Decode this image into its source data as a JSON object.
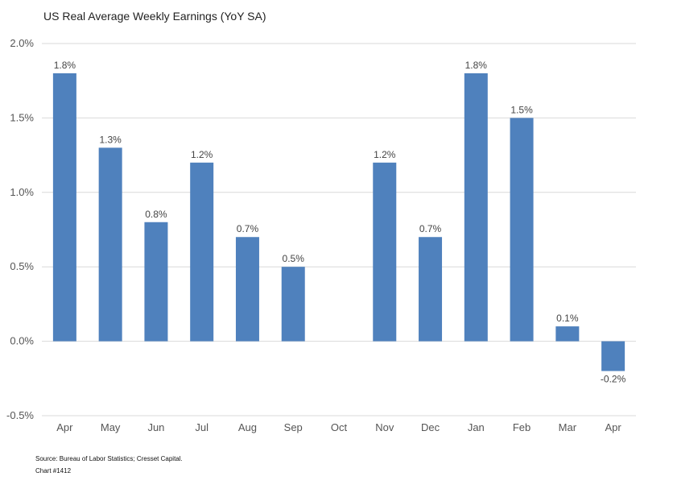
{
  "chart_data": {
    "type": "bar",
    "title": "US Real Average Weekly Earnings  (YoY SA)",
    "categories": [
      "Apr",
      "May",
      "Jun",
      "Jul",
      "Aug",
      "Sep",
      "Oct",
      "Nov",
      "Dec",
      "Jan",
      "Feb",
      "Mar",
      "Apr"
    ],
    "values": [
      1.8,
      1.3,
      0.8,
      1.2,
      0.7,
      0.5,
      null,
      1.2,
      0.7,
      1.8,
      1.5,
      0.1,
      -0.2
    ],
    "data_labels": [
      "1.8%",
      "1.3%",
      "0.8%",
      "1.2%",
      "0.7%",
      "0.5%",
      "",
      "1.2%",
      "0.7%",
      "1.8%",
      "1.5%",
      "0.1%",
      "-0.2%"
    ],
    "ylim": [
      -0.5,
      2.0
    ],
    "yticks": [
      -0.5,
      0.0,
      0.5,
      1.0,
      1.5,
      2.0
    ],
    "ytick_labels": [
      "-0.5%",
      "0.0%",
      "0.5%",
      "1.0%",
      "1.5%",
      "2.0%"
    ],
    "grid": true,
    "bar_color": "#4f81bd"
  },
  "footer": {
    "source": "Source: Bureau of Labor Statistics; Cresset Capital.",
    "chart_number": "Chart #1412"
  }
}
